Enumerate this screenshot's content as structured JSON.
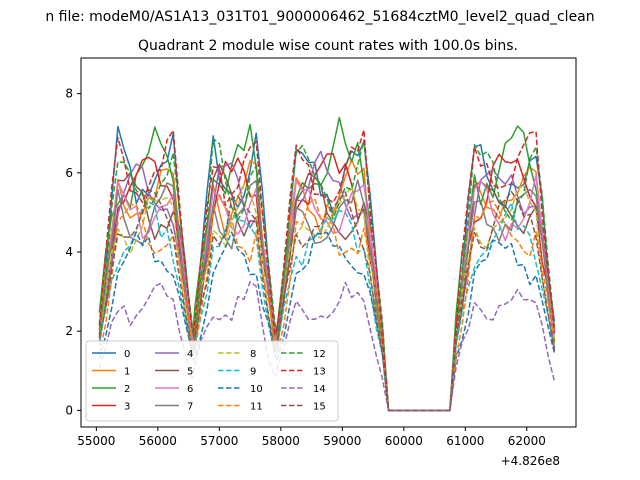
{
  "figure": {
    "suptitle": "n file: modeM0/AS1A13_031T01_9000006462_51684cztM0_level2_quad_clean",
    "title": "Quadrant 2 module wise count rates with 100.0s bins."
  },
  "chart_data": {
    "type": "line",
    "title": "Quadrant 2 module wise count rates with 100.0s bins.",
    "xlabel": "",
    "ylabel": "",
    "x_offset_label": "+4.826e8",
    "xlim": [
      54750,
      62800
    ],
    "ylim": [
      -0.42,
      8.9
    ],
    "xticks": [
      55000,
      56000,
      57000,
      58000,
      59000,
      60000,
      61000,
      62000
    ],
    "yticks": [
      0,
      2,
      4,
      6,
      8
    ],
    "grid": false,
    "legend": {
      "placement": "lower-left",
      "columns": 4
    },
    "segments": [
      [
        55050,
        56550
      ],
      [
        56600,
        57900
      ],
      [
        57950,
        59650
      ],
      [
        60850,
        62450
      ]
    ],
    "gap": {
      "start": 59650,
      "end": 60850,
      "level": 0,
      "step": 100
    },
    "series": [
      {
        "name": "0",
        "color": "#1f77b4",
        "dash": "solid",
        "mean": 6.5,
        "amp": 0.45
      },
      {
        "name": "1",
        "color": "#ff7f0e",
        "dash": "solid",
        "mean": 5.9,
        "amp": 0.35
      },
      {
        "name": "2",
        "color": "#2ca02c",
        "dash": "solid",
        "mean": 6.7,
        "amp": 0.55
      },
      {
        "name": "3",
        "color": "#d62728",
        "dash": "solid",
        "mean": 6.2,
        "amp": 0.35
      },
      {
        "name": "4",
        "color": "#9467bd",
        "dash": "solid",
        "mean": 6.0,
        "amp": 0.35
      },
      {
        "name": "5",
        "color": "#8c564b",
        "dash": "solid",
        "mean": 5.7,
        "amp": 0.3
      },
      {
        "name": "6",
        "color": "#e377c2",
        "dash": "solid",
        "mean": 5.6,
        "amp": 0.3
      },
      {
        "name": "7",
        "color": "#7f7f7f",
        "dash": "solid",
        "mean": 5.4,
        "amp": 0.3
      },
      {
        "name": "8",
        "color": "#bcbd22",
        "dash": "dashed",
        "mean": 5.3,
        "amp": 0.3
      },
      {
        "name": "9",
        "color": "#17becf",
        "dash": "dashed",
        "mean": 4.8,
        "amp": 0.3
      },
      {
        "name": "10",
        "color": "#1f77b4",
        "dash": "dashed",
        "mean": 4.2,
        "amp": 0.25
      },
      {
        "name": "11",
        "color": "#ff7f0e",
        "dash": "dashed",
        "mean": 5.0,
        "amp": 0.3
      },
      {
        "name": "12",
        "color": "#2ca02c",
        "dash": "dashed",
        "mean": 6.4,
        "amp": 0.35
      },
      {
        "name": "13",
        "color": "#d62728",
        "dash": "dashed",
        "mean": 6.6,
        "amp": 0.35
      },
      {
        "name": "14",
        "color": "#9467bd",
        "dash": "dashed",
        "mean": 2.9,
        "amp": 0.25
      },
      {
        "name": "15",
        "color": "#8c564b",
        "dash": "dashed",
        "mean": 5.2,
        "amp": 0.3
      }
    ]
  }
}
